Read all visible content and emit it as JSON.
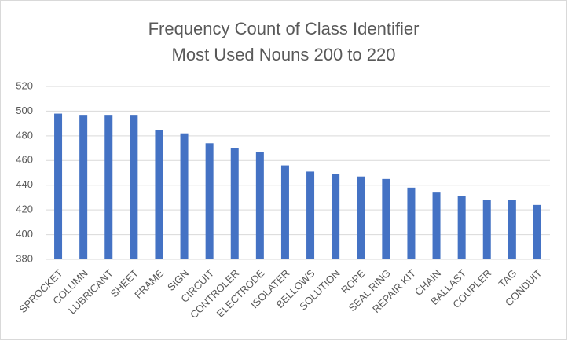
{
  "chart_data": {
    "type": "bar",
    "title": "Frequency Count of Class Identifier",
    "subtitle": "Most Used Nouns 200 to 220",
    "categories": [
      "SPROCKET",
      "COLUMN",
      "LUBRICANT",
      "SHEET",
      "FRAME",
      "SIGN",
      "CIRCUIT",
      "CONTROLER",
      "ELECTRODE",
      "ISOLATER",
      "BELLOWS",
      "SOLUTION",
      "ROPE",
      "SEAL RING",
      "REPAIR KIT",
      "CHAIN",
      "BALLAST",
      "COUPLER",
      "TAG",
      "CONDUIT"
    ],
    "values": [
      498,
      497,
      497,
      497,
      485,
      482,
      474,
      470,
      467,
      456,
      451,
      449,
      447,
      445,
      438,
      434,
      431,
      428,
      428,
      424
    ],
    "color": "#4472c4",
    "ylim": [
      380,
      520
    ],
    "yticks": [
      380,
      400,
      420,
      440,
      460,
      480,
      500,
      520
    ],
    "grid": true
  }
}
